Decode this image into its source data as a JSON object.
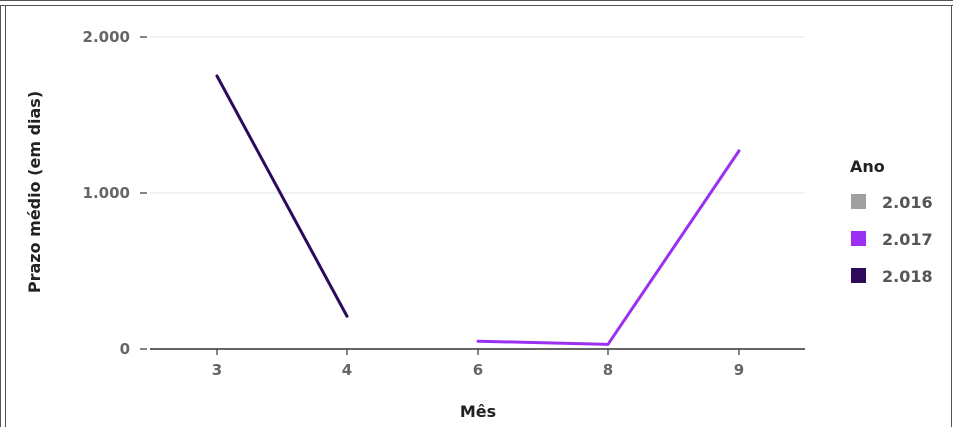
{
  "chart_data": {
    "type": "line",
    "title": "",
    "xlabel": "Mês",
    "ylabel": "Prazo médio (em dias)",
    "categories": [
      "3",
      "4",
      "6",
      "8",
      "9"
    ],
    "ylim": [
      0,
      2000
    ],
    "yticks": [
      {
        "value": 0,
        "label": "0"
      },
      {
        "value": 1000,
        "label": "1.000"
      },
      {
        "value": 2000,
        "label": "2.000"
      }
    ],
    "grid": true,
    "legend": {
      "title": "Ano",
      "placement": "right"
    },
    "series": [
      {
        "name": "2.016",
        "color": "#a0a0a0",
        "values": [
          null,
          null,
          null,
          null,
          null
        ]
      },
      {
        "name": "2.017",
        "color": "#9b30f0",
        "values": [
          null,
          null,
          50,
          30,
          1270
        ]
      },
      {
        "name": "2.018",
        "color": "#2d0a5a",
        "values": [
          1750,
          210,
          null,
          null,
          null
        ]
      }
    ]
  }
}
